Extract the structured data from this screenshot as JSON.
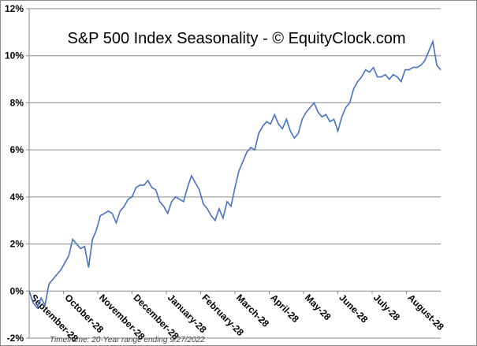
{
  "chart_data": {
    "type": "line",
    "title": "S&P 500 Index Seasonality - © EquityClock.com",
    "footnote": "Timeframe: 20-Year range ending 9/27/2022",
    "xlabel": "",
    "ylabel": "",
    "ylim": [
      -2,
      12
    ],
    "yticks": [
      -2,
      0,
      2,
      4,
      6,
      8,
      10,
      12
    ],
    "ytick_labels": [
      "-2%",
      "0%",
      "2%",
      "4%",
      "6%",
      "8%",
      "10%",
      "12%"
    ],
    "xtick_labels": [
      "September-28",
      "October-28",
      "November-28",
      "December-28",
      "January-28",
      "February-28",
      "March-28",
      "April-28",
      "May-28",
      "June-28",
      "July-28",
      "August-28"
    ],
    "grid": true,
    "line_color": "#4472C4",
    "series": [
      {
        "name": "S&P 500 Index Seasonality",
        "values": [
          0,
          -0.5,
          -0.7,
          -0.3,
          -0.6,
          0.3,
          0.5,
          0.7,
          0.9,
          1.2,
          1.5,
          2.2,
          2.0,
          1.8,
          1.9,
          1.0,
          2.2,
          2.6,
          3.2,
          3.3,
          3.4,
          3.3,
          2.9,
          3.4,
          3.6,
          3.9,
          4.0,
          4.4,
          4.5,
          4.5,
          4.7,
          4.4,
          4.3,
          3.8,
          3.6,
          3.3,
          3.8,
          4.0,
          3.9,
          3.8,
          4.4,
          4.9,
          4.6,
          4.3,
          3.7,
          3.5,
          3.2,
          3.0,
          3.5,
          3.1,
          3.8,
          3.6,
          4.4,
          5.1,
          5.5,
          5.9,
          6.1,
          6.0,
          6.7,
          7.0,
          7.2,
          7.1,
          7.5,
          7.1,
          6.9,
          7.3,
          6.8,
          6.5,
          6.7,
          7.3,
          7.6,
          7.8,
          8.0,
          7.6,
          7.4,
          7.5,
          7.2,
          7.3,
          6.8,
          7.4,
          7.8,
          8.0,
          8.6,
          8.9,
          9.1,
          9.4,
          9.3,
          9.5,
          9.1,
          9.1,
          9.2,
          9.0,
          9.2,
          9.1,
          8.9,
          9.4,
          9.4,
          9.5,
          9.5,
          9.6,
          9.8,
          10.2,
          10.6,
          9.6,
          9.4
        ]
      }
    ]
  }
}
